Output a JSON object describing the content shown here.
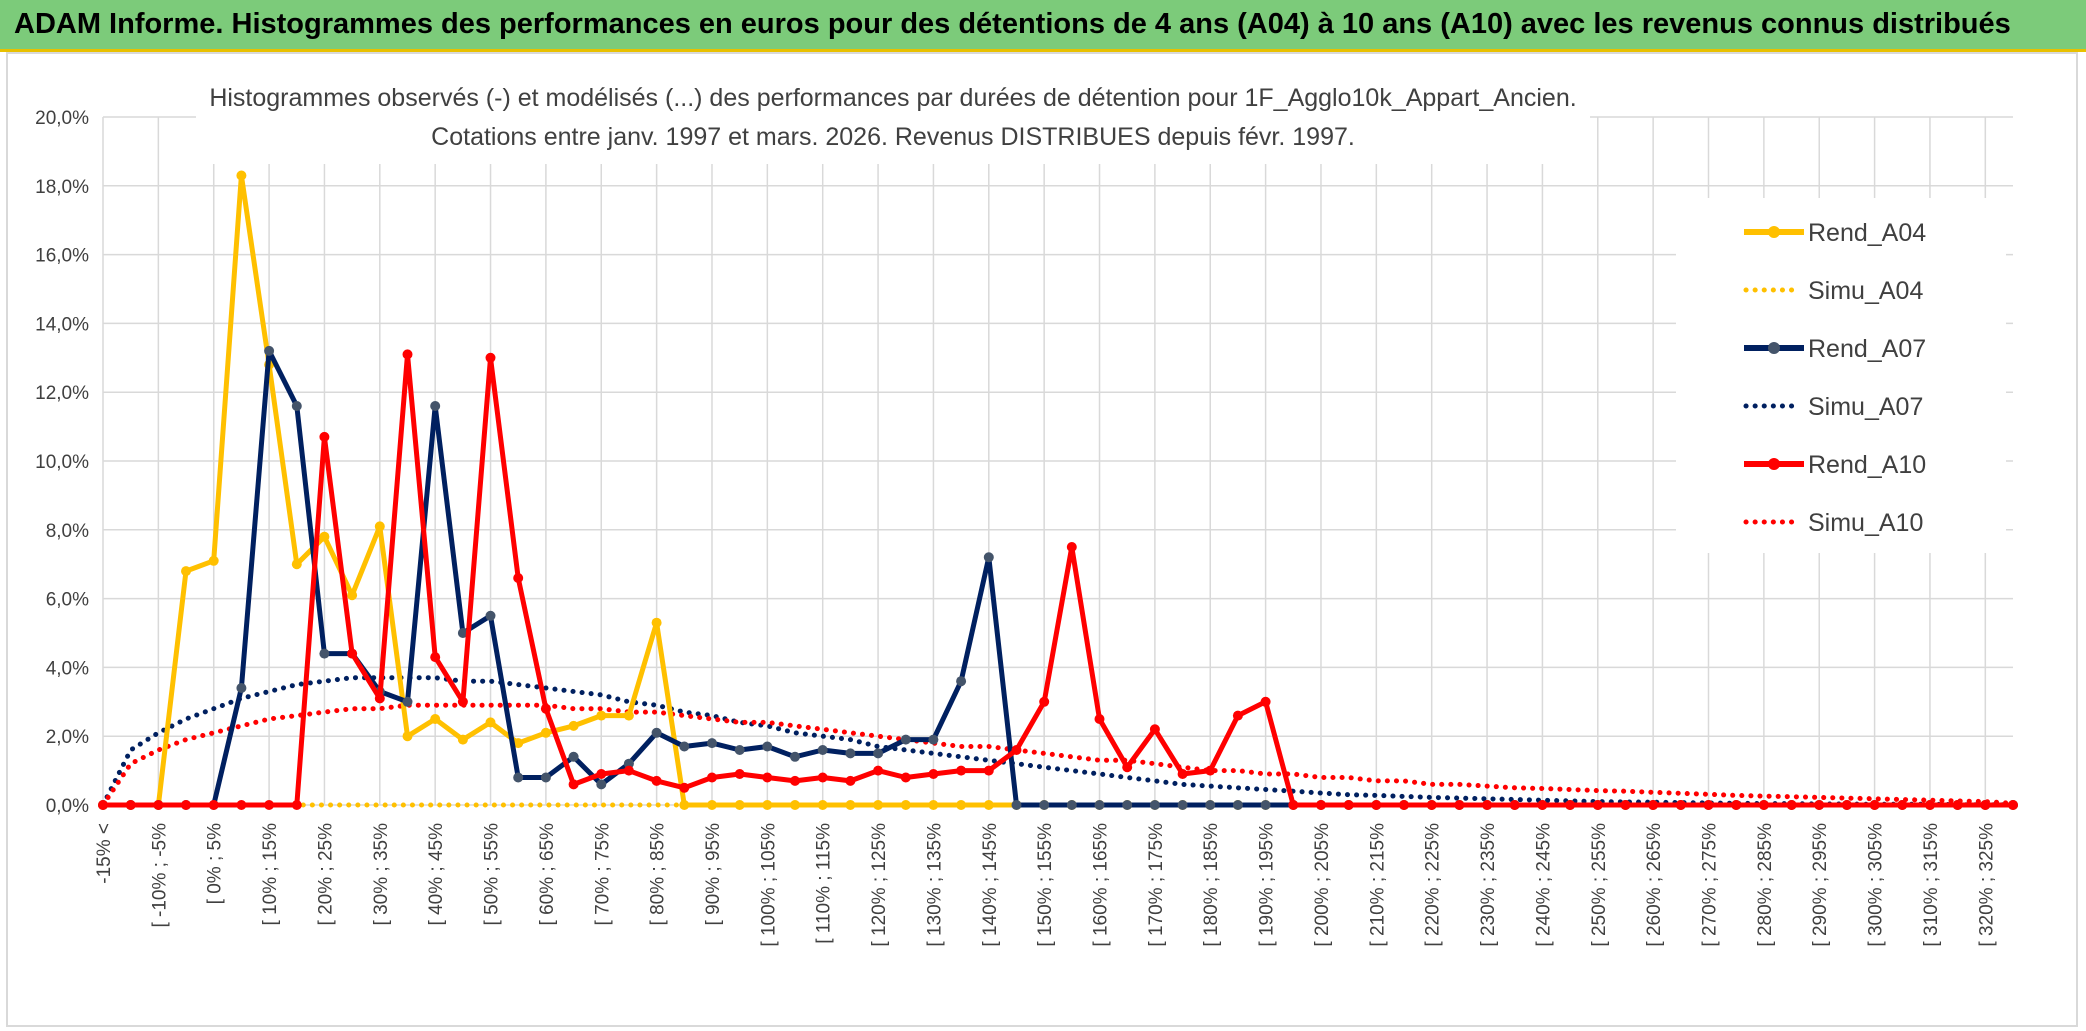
{
  "header": {
    "title": "ADAM Informe. Histogrammes des performances en euros pour des détentions de 4 ans (A04) à 10 ans (A10) avec les revenus connus distribués"
  },
  "chart_data": {
    "type": "line",
    "title_line1": "Histogrammes observés (-) et modélisés (...) des performances par durées de détention pour 1F_Agglo10k_Appart_Ancien.",
    "title_line2": "Cotations entre janv. 1997 et mars. 2026. Revenus DISTRIBUES depuis févr. 1997.",
    "ylim": [
      0,
      20
    ],
    "y_ticks": [
      "0,0%",
      "2,0%",
      "4,0%",
      "6,0%",
      "8,0%",
      "10,0%",
      "12,0%",
      "14,0%",
      "16,0%",
      "18,0%",
      "20,0%"
    ],
    "x_tick_labels": [
      "-15% <",
      "[ -10% ; -5%",
      "[ 0% ; 5%",
      "[ 10% ; 15%",
      "[ 20% ; 25%",
      "[ 30% ; 35%",
      "[ 40% ; 45%",
      "[ 50% ; 55%",
      "[ 60% ; 65%",
      "[ 70% ; 75%",
      "[ 80% ; 85%",
      "[ 90% ; 95%",
      "[ 100% ; 105%",
      "[ 110% ; 115%",
      "[ 120% ; 125%",
      "[ 130% ; 135%",
      "[ 140% ; 145%",
      "[ 150% ; 155%",
      "[ 160% ; 165%",
      "[ 170% ; 175%",
      "[ 180% ; 185%",
      "[ 190% ; 195%",
      "[ 200% ; 205%",
      "[ 210% ; 215%",
      "[ 220% ; 225%",
      "[ 230% ; 235%",
      "[ 240% ; 245%",
      "[ 250% ; 255%",
      "[ 260% ; 265%",
      "[ 270% ; 275%",
      "[ 280% ; 285%",
      "[ 290% ; 295%",
      "[ 300% ; 305%",
      "[ 310% ; 315%",
      "[ 320% ; 325%"
    ],
    "categories_count": 70,
    "legend_position": "right",
    "grid": true,
    "series": [
      {
        "name": "Rend_A04",
        "style": "solid",
        "color": "#ffc000",
        "values": [
          0,
          0,
          0,
          6.8,
          7.1,
          18.3,
          12.8,
          7.0,
          7.8,
          6.1,
          8.1,
          2.0,
          2.5,
          1.9,
          2.4,
          1.8,
          2.1,
          2.3,
          2.6,
          2.6,
          5.3,
          0,
          0,
          0,
          0,
          0,
          0,
          0,
          0,
          0,
          0,
          0,
          0,
          0,
          0,
          0,
          0,
          0,
          0,
          0,
          0,
          0,
          0,
          0,
          0,
          0,
          0,
          0,
          0,
          0,
          0,
          0,
          0,
          0,
          0,
          0,
          0,
          0,
          0,
          0,
          0,
          0,
          0,
          0,
          0,
          0,
          0,
          0,
          0,
          0
        ]
      },
      {
        "name": "Simu_A04",
        "style": "dotted",
        "color": "#ffc000",
        "values": [
          0,
          0,
          0,
          0,
          0,
          0,
          0,
          0,
          0,
          0,
          0,
          0,
          0,
          0,
          0,
          0,
          0,
          0,
          0,
          0,
          0,
          0,
          0,
          0,
          0,
          0,
          0,
          0,
          0,
          0,
          0,
          0,
          0,
          0,
          0,
          0,
          0,
          0,
          0,
          0,
          0,
          0,
          0,
          0,
          0,
          0,
          0,
          0,
          0,
          0,
          0,
          0,
          0,
          0,
          0,
          0,
          0,
          0,
          0,
          0,
          0,
          0,
          0,
          0,
          0,
          0,
          0,
          0,
          0,
          0
        ]
      },
      {
        "name": "Rend_A07",
        "style": "solid",
        "color": "#002060",
        "values": [
          0,
          0,
          0,
          0,
          0,
          3.4,
          13.2,
          11.6,
          4.4,
          4.4,
          3.3,
          3.0,
          11.6,
          5.0,
          5.5,
          0.8,
          0.8,
          1.4,
          0.6,
          1.2,
          2.1,
          1.7,
          1.8,
          1.6,
          1.7,
          1.4,
          1.6,
          1.5,
          1.5,
          1.9,
          1.9,
          3.6,
          7.2,
          0,
          0,
          0,
          0,
          0,
          0,
          0,
          0,
          0,
          0,
          0,
          0,
          0,
          0,
          0,
          0,
          0,
          0,
          0,
          0,
          0,
          0,
          0,
          0,
          0,
          0,
          0,
          0,
          0,
          0,
          0,
          0,
          0,
          0,
          0,
          0,
          0
        ]
      },
      {
        "name": "Simu_A07",
        "style": "dotted",
        "color": "#002060",
        "values": [
          0,
          1.6,
          2.1,
          2.5,
          2.8,
          3.1,
          3.3,
          3.5,
          3.6,
          3.7,
          3.7,
          3.7,
          3.7,
          3.6,
          3.6,
          3.5,
          3.4,
          3.3,
          3.2,
          3.0,
          2.9,
          2.7,
          2.6,
          2.4,
          2.3,
          2.1,
          2.0,
          1.9,
          1.7,
          1.6,
          1.5,
          1.4,
          1.3,
          1.2,
          1.1,
          1.0,
          0.9,
          0.8,
          0.7,
          0.6,
          0.55,
          0.5,
          0.45,
          0.4,
          0.35,
          0.3,
          0.28,
          0.25,
          0.22,
          0.2,
          0.18,
          0.16,
          0.14,
          0.12,
          0.1,
          0.09,
          0.08,
          0.07,
          0.06,
          0.05,
          0.04,
          0.04,
          0.03,
          0.03,
          0.02,
          0.02,
          0.02,
          0.01,
          0.01,
          0.01
        ]
      },
      {
        "name": "Rend_A10",
        "style": "solid",
        "color": "#ff0000",
        "values": [
          0,
          0,
          0,
          0,
          0,
          0,
          0,
          0,
          10.7,
          4.4,
          3.1,
          13.1,
          4.3,
          3.0,
          13.0,
          6.6,
          2.8,
          0.6,
          0.9,
          1.0,
          0.7,
          0.5,
          0.8,
          0.9,
          0.8,
          0.7,
          0.8,
          0.7,
          1.0,
          0.8,
          0.9,
          1.0,
          1.0,
          1.6,
          3.0,
          7.5,
          2.5,
          1.1,
          2.2,
          0.9,
          1.0,
          2.6,
          3.0,
          0,
          0,
          0,
          0,
          0,
          0,
          0,
          0,
          0,
          0,
          0,
          0,
          0,
          0,
          0,
          0,
          0,
          0,
          0,
          0,
          0,
          0,
          0,
          0,
          0,
          0,
          0
        ]
      },
      {
        "name": "Simu_A10",
        "style": "dotted",
        "color": "#ff0000",
        "values": [
          0,
          1.2,
          1.6,
          1.9,
          2.1,
          2.3,
          2.5,
          2.6,
          2.7,
          2.8,
          2.8,
          2.9,
          2.9,
          2.9,
          2.9,
          2.9,
          2.9,
          2.8,
          2.8,
          2.7,
          2.7,
          2.6,
          2.5,
          2.4,
          2.4,
          2.3,
          2.2,
          2.1,
          2.0,
          1.9,
          1.8,
          1.7,
          1.7,
          1.6,
          1.5,
          1.4,
          1.3,
          1.3,
          1.2,
          1.1,
          1.0,
          1.0,
          0.9,
          0.9,
          0.8,
          0.8,
          0.7,
          0.7,
          0.6,
          0.6,
          0.55,
          0.5,
          0.48,
          0.45,
          0.42,
          0.4,
          0.37,
          0.34,
          0.31,
          0.28,
          0.26,
          0.24,
          0.22,
          0.2,
          0.18,
          0.16,
          0.14,
          0.12,
          0.1,
          0.05
        ]
      }
    ]
  }
}
